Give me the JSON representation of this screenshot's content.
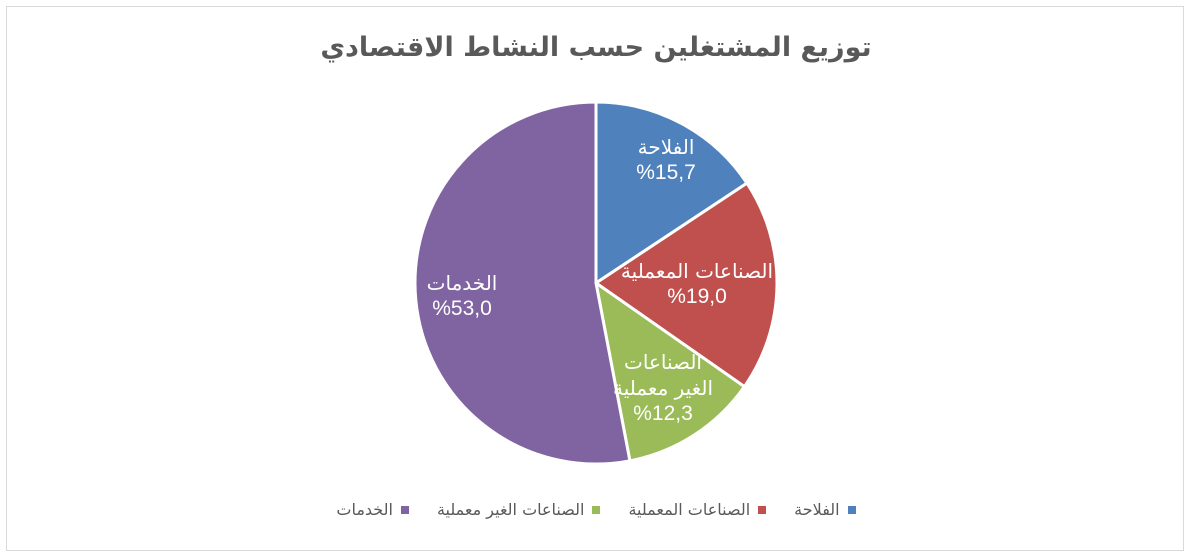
{
  "chart_data": {
    "type": "pie",
    "title": "توزيع المشتغلين حسب النشاط الاقتصادي",
    "slices": [
      {
        "name": "الفلاحة",
        "value": 15.7,
        "label": "%15,7",
        "color": "#4f81bd"
      },
      {
        "name": "الصناعات المعملية",
        "value": 19.0,
        "label": "%19,0",
        "color": "#c0504d"
      },
      {
        "name": "الصناعات الغير معملية",
        "value": 12.3,
        "label": "%12,3",
        "color": "#9bbb59"
      },
      {
        "name": "الخدمات",
        "value": 53.0,
        "label": "%53,0",
        "color": "#8064a2"
      }
    ],
    "legend_position": "bottom"
  }
}
